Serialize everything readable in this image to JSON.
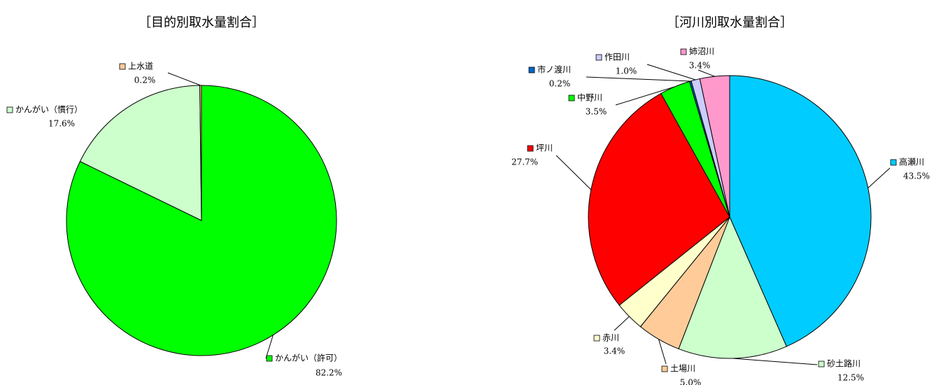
{
  "chart_data": [
    {
      "type": "pie",
      "title": "［目的別取水量割合］",
      "categories": [
        "かんがい（許可）",
        "かんがい（慣行）",
        "上水道"
      ],
      "values": [
        82.2,
        17.6,
        0.2
      ],
      "value_labels": [
        "82.2%",
        "17.6%",
        "0.2%"
      ],
      "colors": [
        "#00ff00",
        "#ccffcc",
        "#ffcc99"
      ]
    },
    {
      "type": "pie",
      "title": "［河川別取水量割合］",
      "categories": [
        "高瀬川",
        "砂土路川",
        "土場川",
        "赤川",
        "坪川",
        "中野川",
        "市ノ渡川",
        "作田川",
        "姉沼川"
      ],
      "values": [
        43.5,
        12.5,
        5.0,
        3.4,
        27.7,
        3.5,
        0.2,
        1.0,
        3.4
      ],
      "value_labels": [
        "43.5%",
        "12.5%",
        "5.0%",
        "3.4%",
        "27.7%",
        "3.5%",
        "0.2%",
        "1.0%",
        "3.4%"
      ],
      "colors": [
        "#00ccff",
        "#ccffcc",
        "#ffcc99",
        "#ffffcc",
        "#ff0000",
        "#00ff00",
        "#0066cc",
        "#ccccff",
        "#ff99cc"
      ]
    }
  ]
}
